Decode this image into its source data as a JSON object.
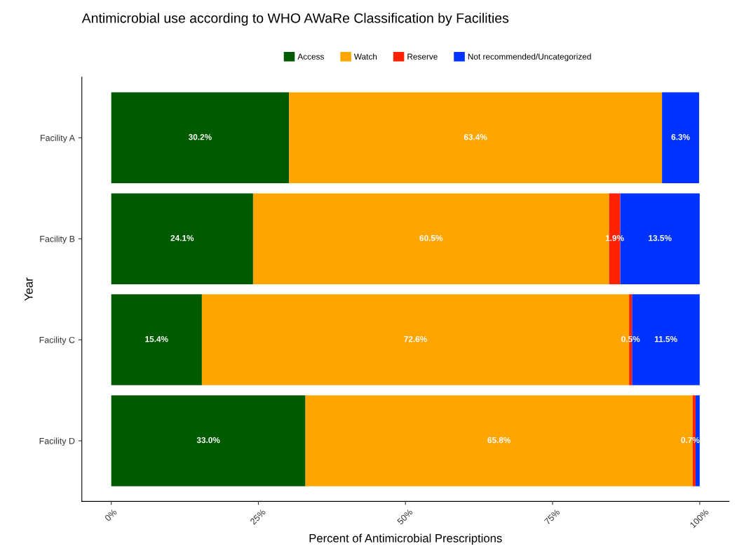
{
  "chart_data": {
    "type": "bar",
    "orientation": "horizontal",
    "stacked": true,
    "title": "Antimicrobial use according to WHO AWaRe Classification by Facilities",
    "xlabel": "Percent of Antimicrobial Prescriptions",
    "ylabel": "Year",
    "categories": [
      "Facility A",
      "Facility B",
      "Facility C",
      "Facility D"
    ],
    "series": [
      {
        "name": "Access",
        "color": "#005a00",
        "values": [
          30.2,
          24.1,
          15.4,
          33.0
        ],
        "value_labels": [
          "30.2%",
          "24.1%",
          "15.4%",
          "33.0%"
        ]
      },
      {
        "name": "Watch",
        "color": "#ffa500",
        "values": [
          63.4,
          60.5,
          72.6,
          65.8
        ],
        "value_labels": [
          "63.4%",
          "60.5%",
          "72.6%",
          "65.8%"
        ]
      },
      {
        "name": "Reserve",
        "color": "#ff2200",
        "values": [
          0,
          1.9,
          0.5,
          0.5
        ],
        "value_labels": [
          null,
          "1.9%",
          "0.5%",
          null
        ]
      },
      {
        "name": "Not recommended/Uncategorized",
        "color": "#0033ff",
        "values": [
          6.3,
          13.5,
          11.5,
          0.7
        ],
        "value_labels": [
          "6.3%",
          "13.5%",
          "11.5%",
          "0.7%"
        ]
      }
    ],
    "xlim": [
      -5,
      105
    ],
    "xticks": [
      {
        "value": 0,
        "label": "0%"
      },
      {
        "value": 25,
        "label": "25%"
      },
      {
        "value": 50,
        "label": "50%"
      },
      {
        "value": 75,
        "label": "75%"
      },
      {
        "value": 100,
        "label": "100%"
      }
    ],
    "legend": "top",
    "grid": false
  }
}
